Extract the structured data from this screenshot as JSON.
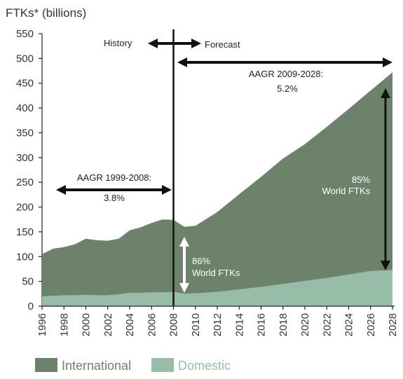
{
  "chart_data": {
    "type": "area",
    "ylabel": "FTKs* (billions)",
    "ylim": [
      0,
      550
    ],
    "xlim": [
      1996,
      2028
    ],
    "y_ticks": [
      0,
      50,
      100,
      150,
      200,
      250,
      300,
      350,
      400,
      450,
      500,
      550
    ],
    "x_ticks": [
      1996,
      1998,
      2000,
      2002,
      2004,
      2006,
      2008,
      2010,
      2012,
      2014,
      2016,
      2018,
      2020,
      2022,
      2024,
      2026,
      2028
    ],
    "stacked": true,
    "series": [
      {
        "name": "Domestic",
        "color": "#97bca7",
        "x": [
          1996,
          1997,
          1998,
          1999,
          2000,
          2001,
          2002,
          2003,
          2004,
          2005,
          2006,
          2007,
          2008,
          2009,
          2010,
          2012,
          2014,
          2016,
          2018,
          2020,
          2022,
          2024,
          2026,
          2028
        ],
        "values": [
          20,
          21,
          22,
          22,
          23,
          22,
          22,
          24,
          27,
          27,
          28,
          28,
          29,
          25,
          26,
          29,
          34,
          39,
          45,
          51,
          57,
          64,
          71,
          73
        ]
      },
      {
        "name": "International",
        "color": "#6d826a",
        "x": [
          1996,
          1997,
          1998,
          1999,
          2000,
          2001,
          2002,
          2003,
          2004,
          2005,
          2006,
          2007,
          2008,
          2009,
          2010,
          2012,
          2014,
          2016,
          2018,
          2020,
          2022,
          2024,
          2026,
          2028
        ],
        "values": [
          85,
          95,
          97,
          103,
          113,
          111,
          110,
          112,
          126,
          132,
          140,
          147,
          145,
          135,
          136,
          161,
          192,
          222,
          253,
          276,
          305,
          334,
          364,
          399
        ]
      }
    ],
    "totals": [
      105,
      116,
      119,
      125,
      136,
      133,
      132,
      136,
      153,
      159,
      168,
      175,
      174,
      160,
      162,
      190,
      226,
      261,
      298,
      327,
      362,
      398,
      435,
      472
    ],
    "annotations": {
      "history": "History",
      "forecast": "Forecast",
      "aagr_hist_line1": "AAGR 1999-2008:",
      "aagr_hist_line2": "3.8%",
      "aagr_fc_line1": "AAGR 2009-2028:",
      "aagr_fc_line2": "5.2%",
      "share_2008_line1": "86%",
      "share_2008_line2": "World FTKs",
      "share_2028_line1": "85%",
      "share_2028_line2": "World FTKs"
    },
    "divider_year": 2008,
    "legend": {
      "placement": "bottom-left",
      "items": [
        {
          "label": "International",
          "color": "#6d826a"
        },
        {
          "label": "Domestic",
          "color": "#97bca7"
        }
      ]
    },
    "grid": false
  }
}
